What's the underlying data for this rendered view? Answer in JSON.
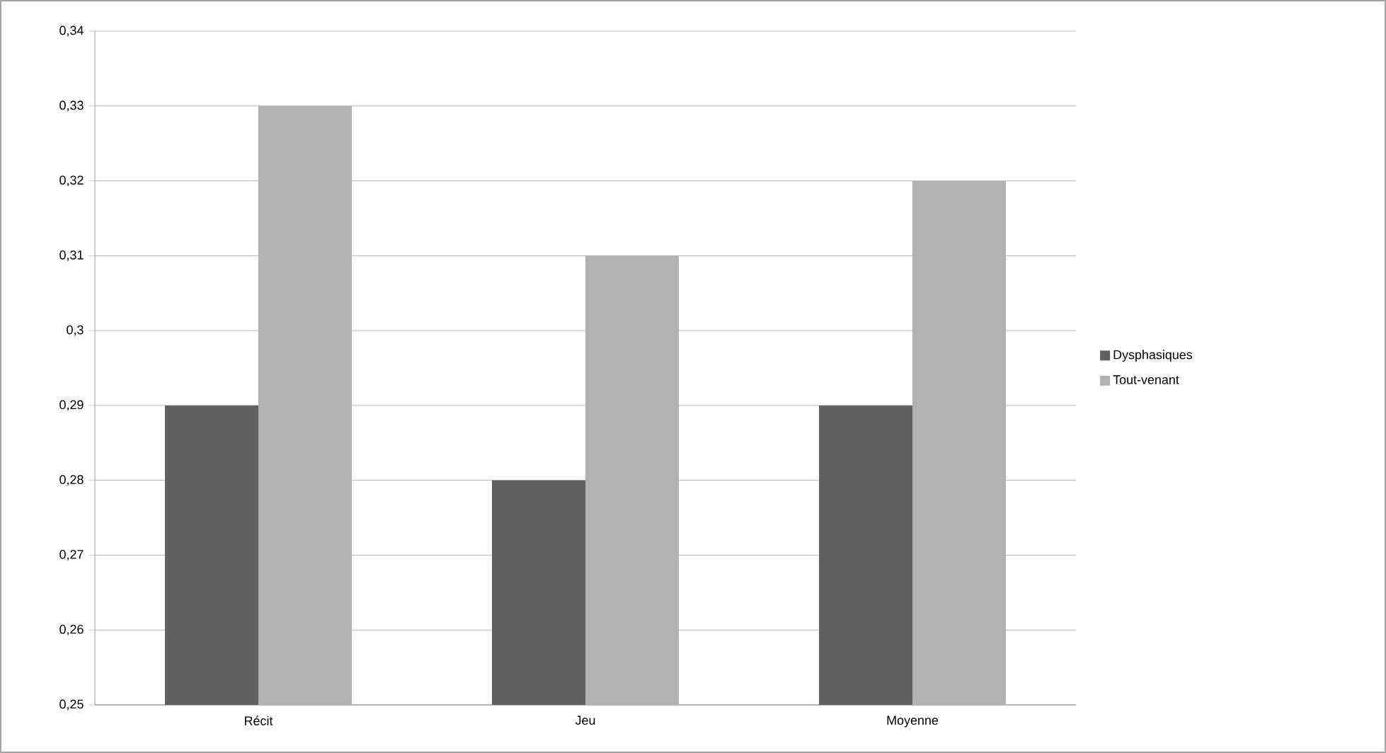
{
  "chart_data": {
    "type": "bar",
    "categories": [
      "Récit",
      "Jeu",
      "Moyenne"
    ],
    "series": [
      {
        "name": "Dysphasiques",
        "color": "#616161",
        "values": [
          0.29,
          0.28,
          0.29
        ]
      },
      {
        "name": "Tout-venant",
        "color": "#b2b2b2",
        "values": [
          0.33,
          0.31,
          0.32
        ]
      }
    ],
    "ylim": [
      0.25,
      0.34
    ],
    "yticks": [
      {
        "value": 0.25,
        "label": "0,25"
      },
      {
        "value": 0.26,
        "label": "0,26"
      },
      {
        "value": 0.27,
        "label": "0,27"
      },
      {
        "value": 0.28,
        "label": "0,28"
      },
      {
        "value": 0.29,
        "label": "0,29"
      },
      {
        "value": 0.3,
        "label": "0,3"
      },
      {
        "value": 0.31,
        "label": "0,31"
      },
      {
        "value": 0.32,
        "label": "0,32"
      },
      {
        "value": 0.33,
        "label": "0,33"
      },
      {
        "value": 0.34,
        "label": "0,34"
      }
    ],
    "grid": "y",
    "legend": "right"
  }
}
